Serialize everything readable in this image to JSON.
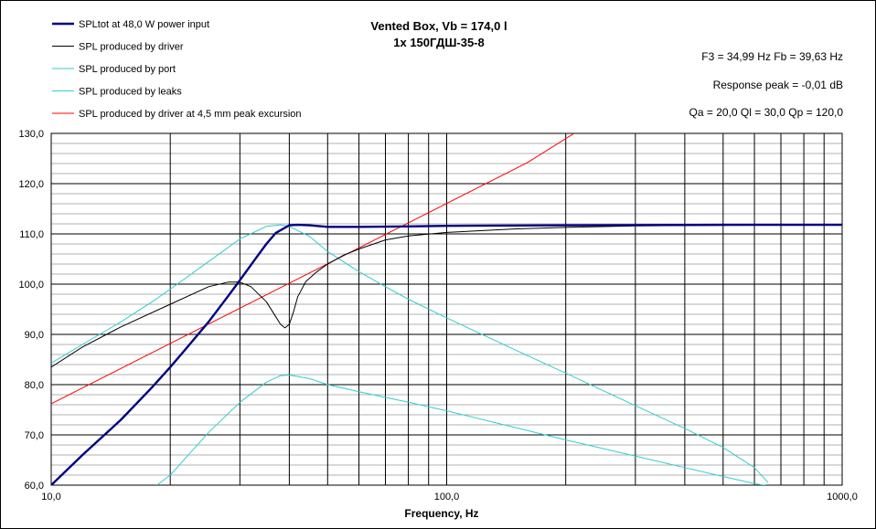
{
  "chart_data": {
    "type": "line",
    "title": "Vented Box, Vb = 174,0 l",
    "subtitle": "1x 150ГДШ-35-8",
    "xlabel": "Frequency, Hz",
    "ylabel": "",
    "x_scale": "log",
    "xlim": [
      10,
      1000
    ],
    "ylim": [
      60,
      130
    ],
    "grid": true,
    "legend_position": "top-left",
    "x_tick_labels": [
      {
        "value": 10,
        "label": "10,0"
      },
      {
        "value": 100,
        "label": "100,0"
      },
      {
        "value": 1000,
        "label": "1000,0"
      }
    ],
    "y_tick_labels": [
      {
        "value": 60,
        "label": "60,0"
      },
      {
        "value": 70,
        "label": "70,0"
      },
      {
        "value": 80,
        "label": "80,0"
      },
      {
        "value": 90,
        "label": "90,0"
      },
      {
        "value": 100,
        "label": "100,0"
      },
      {
        "value": 110,
        "label": "110,0"
      },
      {
        "value": 120,
        "label": "120,0"
      },
      {
        "value": 130,
        "label": "130,0"
      }
    ],
    "annotations": [
      "F3 = 34,99  Hz   Fb = 39,63  Hz",
      "Response peak = -0,01  dB",
      "Qa = 20,0   Ql = 30,0   Qp = 120,0"
    ],
    "series": [
      {
        "name": "SPLtot at 48,0 W power input",
        "color": "#000080",
        "width": "thick",
        "x": [
          10,
          12,
          15,
          18,
          20,
          22,
          25,
          28,
          30,
          33,
          35,
          37,
          40,
          42,
          45,
          50,
          60,
          80,
          100,
          200,
          500,
          1000
        ],
        "y": [
          60.0,
          66.0,
          73.0,
          79.5,
          83.5,
          87.3,
          92.5,
          97.6,
          100.8,
          105.3,
          108.0,
          110.2,
          111.7,
          111.8,
          111.7,
          111.4,
          111.4,
          111.5,
          111.6,
          111.7,
          111.8,
          111.8
        ]
      },
      {
        "name": "SPL produced by driver",
        "color": "#000000",
        "width": "thin",
        "x": [
          10,
          12,
          15,
          20,
          25,
          28,
          30,
          32,
          35,
          37,
          38,
          39,
          40,
          41,
          42,
          44,
          47,
          50,
          55,
          60,
          70,
          80,
          100,
          150,
          200,
          300,
          500,
          1000
        ],
        "y": [
          83.5,
          87.5,
          91.5,
          96.0,
          99.5,
          100.4,
          100.4,
          99.5,
          96.5,
          93.5,
          92.0,
          91.3,
          92.0,
          94.5,
          97.5,
          100.5,
          102.5,
          104.0,
          105.8,
          107.0,
          108.8,
          109.6,
          110.3,
          111.0,
          111.3,
          111.6,
          111.7,
          111.8
        ]
      },
      {
        "name": "SPL produced by port",
        "color": "#33CCCC",
        "width": "thin",
        "x": [
          10,
          12,
          15,
          18,
          20,
          25,
          30,
          35,
          38,
          40,
          45,
          50,
          60,
          70,
          80,
          100,
          150,
          200,
          300,
          400,
          500,
          600,
          650
        ],
        "y": [
          84.3,
          88.0,
          92.5,
          96.5,
          99.0,
          104.5,
          109.0,
          111.5,
          111.8,
          111.5,
          109.5,
          106.5,
          102.5,
          99.5,
          97.0,
          93.3,
          86.8,
          82.3,
          75.8,
          71.3,
          67.5,
          63.5,
          60.5
        ]
      },
      {
        "name": "SPL produced by leaks",
        "color": "#33CCCC",
        "width": "thin",
        "x": [
          18.5,
          20,
          25,
          30,
          35,
          38,
          40,
          45,
          50,
          60,
          80,
          100,
          200,
          400,
          600,
          700
        ],
        "y": [
          60.0,
          62.0,
          70.5,
          76.5,
          80.5,
          81.8,
          81.9,
          81.2,
          80.0,
          78.6,
          76.5,
          74.8,
          69.0,
          63.5,
          60.3,
          59.5
        ]
      },
      {
        "name": "SPL produced by driver at 4,5 mm peak excursion",
        "color": "#FF0000",
        "width": "thin",
        "x": [
          10,
          20,
          40,
          80,
          160,
          210
        ],
        "y": [
          76.2,
          88.2,
          100.2,
          112.2,
          124.2,
          130.0
        ]
      }
    ]
  }
}
